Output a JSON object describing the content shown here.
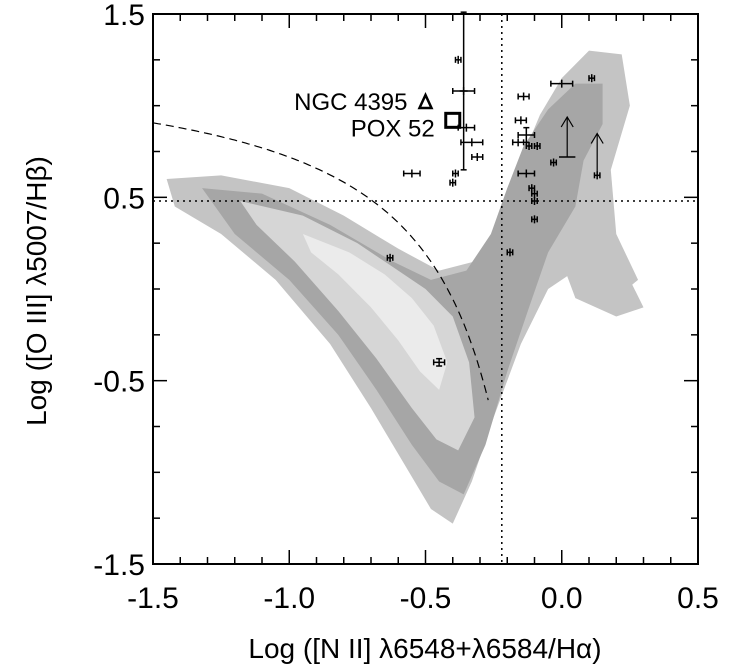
{
  "chart_data": {
    "type": "scatter",
    "xlabel": "Log ([N II] λ6548+λ6584/Hα)",
    "ylabel": "Log ([O III] λ5007/Hβ)",
    "xlim": [
      -1.5,
      0.5
    ],
    "ylim": [
      -1.5,
      1.5
    ],
    "x_ticks": [
      "-1.5",
      "-1.0",
      "-0.5",
      "0.0",
      "0.5"
    ],
    "y_ticks": [
      "-1.5",
      "-0.5",
      "0.5",
      "1.5"
    ],
    "grid": false,
    "reference_lines": {
      "vertical_x": -0.22,
      "horizontal_y": 0.48
    },
    "colors": {
      "contour_outer": "#c4c4c4",
      "contour_mid": "#a6a6a6",
      "contour_inner": "#d6d6d6",
      "contour_core": "#ebebeb",
      "points": "#000000"
    },
    "annotations": [
      {
        "text": "NGC 4395",
        "x": -0.5,
        "y": 1.02,
        "marker": "triangle"
      },
      {
        "text": "POX 52",
        "x": -0.4,
        "y": 0.92,
        "marker": "square"
      }
    ],
    "points": [
      {
        "x": -0.38,
        "y": 1.25,
        "xerr": 0.01,
        "yerr": 0.0
      },
      {
        "x": -0.36,
        "y": 1.08,
        "xerr": 0.04,
        "yerr": 0.0
      },
      {
        "x": -0.35,
        "y": 0.88,
        "xerr": 0.03,
        "yerr": 0.0
      },
      {
        "x": -0.33,
        "y": 0.8,
        "xerr": 0.04,
        "yerr": 0.0
      },
      {
        "x": -0.31,
        "y": 0.72,
        "xerr": 0.02,
        "yerr": 0.0
      },
      {
        "x": -0.55,
        "y": 0.63,
        "xerr": 0.03,
        "yerr": 0.0
      },
      {
        "x": -0.39,
        "y": 0.63,
        "xerr": 0.01,
        "yerr": 0.0
      },
      {
        "x": -0.4,
        "y": 0.58,
        "xerr": 0.01,
        "yerr": 0.0
      },
      {
        "x": -0.36,
        "y": 1.08,
        "xerr": 0.0,
        "yerr": 0.43
      },
      {
        "x": -0.63,
        "y": 0.17,
        "xerr": 0.01,
        "yerr": 0.0
      },
      {
        "x": -0.45,
        "y": -0.4,
        "xerr": 0.02,
        "yerr": 0.02
      },
      {
        "x": -0.19,
        "y": 0.2,
        "xerr": 0.01,
        "yerr": 0.0
      },
      {
        "x": -0.14,
        "y": 1.05,
        "xerr": 0.02,
        "yerr": 0.0
      },
      {
        "x": -0.15,
        "y": 0.92,
        "xerr": 0.02,
        "yerr": 0.0
      },
      {
        "x": -0.13,
        "y": 0.84,
        "xerr": 0.03,
        "yerr": 0.04
      },
      {
        "x": -0.16,
        "y": 0.8,
        "xerr": 0.02,
        "yerr": 0.0
      },
      {
        "x": -0.12,
        "y": 0.78,
        "xerr": 0.01,
        "yerr": 0.0
      },
      {
        "x": -0.09,
        "y": 0.78,
        "xerr": 0.01,
        "yerr": 0.0
      },
      {
        "x": -0.13,
        "y": 0.63,
        "xerr": 0.03,
        "yerr": 0.0
      },
      {
        "x": -0.11,
        "y": 0.55,
        "xerr": 0.01,
        "yerr": 0.0
      },
      {
        "x": -0.1,
        "y": 0.52,
        "xerr": 0.01,
        "yerr": 0.0
      },
      {
        "x": -0.1,
        "y": 0.48,
        "xerr": 0.01,
        "yerr": 0.0
      },
      {
        "x": -0.1,
        "y": 0.38,
        "xerr": 0.01,
        "yerr": 0.0
      },
      {
        "x": -0.03,
        "y": 0.69,
        "xerr": 0.01,
        "yerr": 0.0
      },
      {
        "x": 0.0,
        "y": 1.12,
        "xerr": 0.04,
        "yerr": 0.0
      },
      {
        "x": 0.11,
        "y": 1.15,
        "xerr": 0.01,
        "yerr": 0.0
      },
      {
        "x": 0.13,
        "y": 0.62,
        "xerr": 0.01,
        "yerr": 0.0
      }
    ],
    "limits": [
      {
        "x": 0.02,
        "y": 0.72,
        "direction": "up",
        "xerr": 0.03
      },
      {
        "x": 0.13,
        "y": 0.63,
        "direction": "up",
        "xerr": 0.0
      }
    ]
  }
}
